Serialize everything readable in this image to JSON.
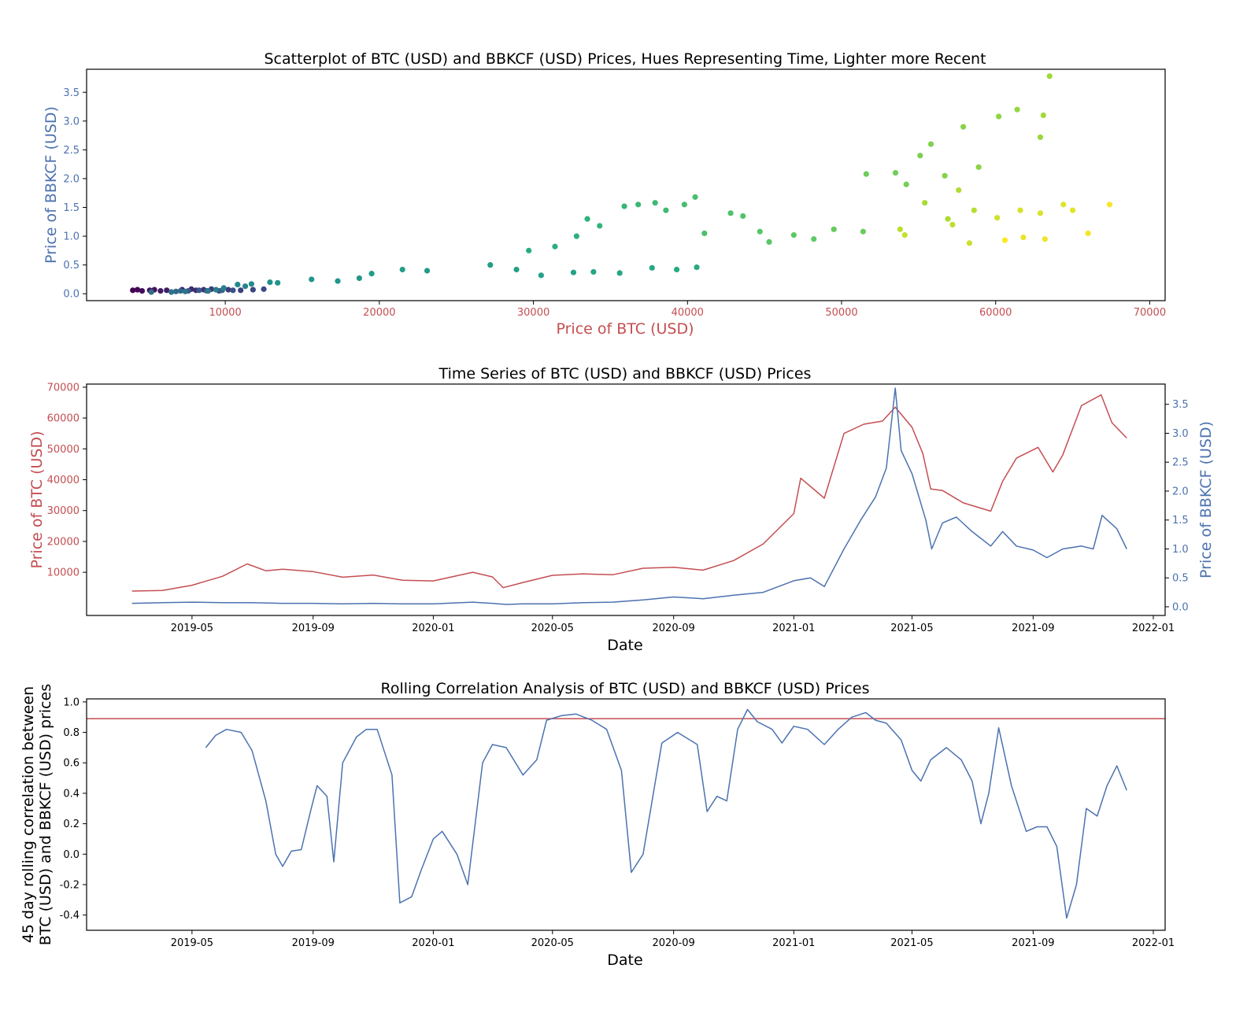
{
  "colors": {
    "btc": "#c44e52",
    "bbkcf": "#4c72b0",
    "threshold": "#c44e52",
    "axis": "#000000",
    "hue_scale": [
      "#440154",
      "#3b528b",
      "#21918c",
      "#27ad81",
      "#5ec962",
      "#a8db34",
      "#fde725"
    ]
  },
  "chart_data": [
    {
      "type": "scatter",
      "title": "Scatterplot of BTC (USD) and BBKCF (USD) Prices, Hues Representing Time, Lighter more Recent",
      "xlabel": "Price of BTC (USD)",
      "ylabel": "Price of BBKCF (USD)",
      "xlim": [
        1000,
        71000
      ],
      "ylim": [
        -0.12,
        3.9
      ],
      "xticks": [
        10000,
        20000,
        30000,
        40000,
        50000,
        60000,
        70000
      ],
      "yticks": [
        0.0,
        0.5,
        1.0,
        1.5,
        2.0,
        2.5,
        3.0,
        3.5
      ],
      "hue": "time (darker = older, lighter = more recent)",
      "points": [
        {
          "x": 4000,
          "y": 0.06,
          "t": 0.0
        },
        {
          "x": 4300,
          "y": 0.07,
          "t": 0.01
        },
        {
          "x": 4600,
          "y": 0.05,
          "t": 0.02
        },
        {
          "x": 5100,
          "y": 0.06,
          "t": 0.03
        },
        {
          "x": 5400,
          "y": 0.07,
          "t": 0.04
        },
        {
          "x": 5800,
          "y": 0.05,
          "t": 0.05
        },
        {
          "x": 6200,
          "y": 0.06,
          "t": 0.06
        },
        {
          "x": 7200,
          "y": 0.07,
          "t": 0.07
        },
        {
          "x": 7800,
          "y": 0.08,
          "t": 0.08
        },
        {
          "x": 8100,
          "y": 0.06,
          "t": 0.09
        },
        {
          "x": 8600,
          "y": 0.07,
          "t": 0.1
        },
        {
          "x": 9100,
          "y": 0.08,
          "t": 0.11
        },
        {
          "x": 10200,
          "y": 0.07,
          "t": 0.12
        },
        {
          "x": 11000,
          "y": 0.06,
          "t": 0.13
        },
        {
          "x": 11800,
          "y": 0.07,
          "t": 0.14
        },
        {
          "x": 12500,
          "y": 0.08,
          "t": 0.15
        },
        {
          "x": 10500,
          "y": 0.06,
          "t": 0.16
        },
        {
          "x": 9600,
          "y": 0.05,
          "t": 0.17
        },
        {
          "x": 8300,
          "y": 0.06,
          "t": 0.18
        },
        {
          "x": 7600,
          "y": 0.05,
          "t": 0.19
        },
        {
          "x": 8800,
          "y": 0.05,
          "t": 0.2
        },
        {
          "x": 9800,
          "y": 0.06,
          "t": 0.21
        },
        {
          "x": 7100,
          "y": 0.05,
          "t": 0.22
        },
        {
          "x": 6800,
          "y": 0.04,
          "t": 0.23
        },
        {
          "x": 5200,
          "y": 0.03,
          "t": 0.24
        },
        {
          "x": 6500,
          "y": 0.03,
          "t": 0.25
        },
        {
          "x": 7400,
          "y": 0.04,
          "t": 0.26
        },
        {
          "x": 8900,
          "y": 0.05,
          "t": 0.27
        },
        {
          "x": 9400,
          "y": 0.07,
          "t": 0.28
        },
        {
          "x": 9900,
          "y": 0.1,
          "t": 0.29
        },
        {
          "x": 11300,
          "y": 0.13,
          "t": 0.3
        },
        {
          "x": 10800,
          "y": 0.16,
          "t": 0.31
        },
        {
          "x": 11700,
          "y": 0.17,
          "t": 0.32
        },
        {
          "x": 12900,
          "y": 0.2,
          "t": 0.33
        },
        {
          "x": 13400,
          "y": 0.19,
          "t": 0.34
        },
        {
          "x": 15600,
          "y": 0.25,
          "t": 0.35
        },
        {
          "x": 17300,
          "y": 0.22,
          "t": 0.36
        },
        {
          "x": 18700,
          "y": 0.27,
          "t": 0.37
        },
        {
          "x": 19500,
          "y": 0.35,
          "t": 0.38
        },
        {
          "x": 23100,
          "y": 0.4,
          "t": 0.39
        },
        {
          "x": 21500,
          "y": 0.42,
          "t": 0.4
        },
        {
          "x": 27200,
          "y": 0.5,
          "t": 0.41
        },
        {
          "x": 28900,
          "y": 0.42,
          "t": 0.42
        },
        {
          "x": 30500,
          "y": 0.32,
          "t": 0.43
        },
        {
          "x": 32600,
          "y": 0.37,
          "t": 0.44
        },
        {
          "x": 33900,
          "y": 0.38,
          "t": 0.45
        },
        {
          "x": 35600,
          "y": 0.36,
          "t": 0.46
        },
        {
          "x": 37700,
          "y": 0.45,
          "t": 0.47
        },
        {
          "x": 39300,
          "y": 0.42,
          "t": 0.48
        },
        {
          "x": 40600,
          "y": 0.46,
          "t": 0.49
        },
        {
          "x": 29700,
          "y": 0.75,
          "t": 0.5
        },
        {
          "x": 31400,
          "y": 0.82,
          "t": 0.51
        },
        {
          "x": 32800,
          "y": 1.0,
          "t": 0.52
        },
        {
          "x": 33500,
          "y": 1.3,
          "t": 0.53
        },
        {
          "x": 34300,
          "y": 1.18,
          "t": 0.54
        },
        {
          "x": 35900,
          "y": 1.52,
          "t": 0.55
        },
        {
          "x": 36800,
          "y": 1.55,
          "t": 0.56
        },
        {
          "x": 37900,
          "y": 1.58,
          "t": 0.57
        },
        {
          "x": 38600,
          "y": 1.45,
          "t": 0.58
        },
        {
          "x": 39800,
          "y": 1.55,
          "t": 0.59
        },
        {
          "x": 40500,
          "y": 1.68,
          "t": 0.6
        },
        {
          "x": 41100,
          "y": 1.05,
          "t": 0.61
        },
        {
          "x": 42800,
          "y": 1.4,
          "t": 0.62
        },
        {
          "x": 43600,
          "y": 1.35,
          "t": 0.63
        },
        {
          "x": 44700,
          "y": 1.08,
          "t": 0.64
        },
        {
          "x": 45300,
          "y": 0.9,
          "t": 0.65
        },
        {
          "x": 46900,
          "y": 1.02,
          "t": 0.66
        },
        {
          "x": 48200,
          "y": 0.95,
          "t": 0.67
        },
        {
          "x": 49500,
          "y": 1.12,
          "t": 0.68
        },
        {
          "x": 51400,
          "y": 1.08,
          "t": 0.69
        },
        {
          "x": 51600,
          "y": 2.08,
          "t": 0.7
        },
        {
          "x": 53500,
          "y": 2.1,
          "t": 0.71
        },
        {
          "x": 54200,
          "y": 1.9,
          "t": 0.72
        },
        {
          "x": 55100,
          "y": 2.4,
          "t": 0.73
        },
        {
          "x": 55800,
          "y": 2.6,
          "t": 0.74
        },
        {
          "x": 56700,
          "y": 2.05,
          "t": 0.75
        },
        {
          "x": 57900,
          "y": 2.9,
          "t": 0.76
        },
        {
          "x": 58900,
          "y": 2.2,
          "t": 0.77
        },
        {
          "x": 60200,
          "y": 3.08,
          "t": 0.78
        },
        {
          "x": 61400,
          "y": 3.2,
          "t": 0.79
        },
        {
          "x": 62900,
          "y": 2.72,
          "t": 0.8
        },
        {
          "x": 63500,
          "y": 3.78,
          "t": 0.81
        },
        {
          "x": 63100,
          "y": 3.1,
          "t": 0.82
        },
        {
          "x": 55400,
          "y": 1.58,
          "t": 0.83
        },
        {
          "x": 56900,
          "y": 1.3,
          "t": 0.84
        },
        {
          "x": 57600,
          "y": 1.8,
          "t": 0.85
        },
        {
          "x": 58600,
          "y": 1.45,
          "t": 0.86
        },
        {
          "x": 53800,
          "y": 1.12,
          "t": 0.87
        },
        {
          "x": 57200,
          "y": 1.2,
          "t": 0.88
        },
        {
          "x": 54100,
          "y": 1.02,
          "t": 0.89
        },
        {
          "x": 58300,
          "y": 0.88,
          "t": 0.9
        },
        {
          "x": 60100,
          "y": 1.32,
          "t": 0.91
        },
        {
          "x": 61600,
          "y": 1.45,
          "t": 0.92
        },
        {
          "x": 62900,
          "y": 1.4,
          "t": 0.93
        },
        {
          "x": 64400,
          "y": 1.55,
          "t": 0.94
        },
        {
          "x": 65000,
          "y": 1.45,
          "t": 0.95
        },
        {
          "x": 61800,
          "y": 0.98,
          "t": 0.96
        },
        {
          "x": 63200,
          "y": 0.95,
          "t": 0.97
        },
        {
          "x": 66000,
          "y": 1.05,
          "t": 0.98
        },
        {
          "x": 67400,
          "y": 1.55,
          "t": 0.99
        },
        {
          "x": 60600,
          "y": 0.93,
          "t": 1.0
        }
      ]
    },
    {
      "type": "line",
      "title": "Time Series of BTC (USD) and BBKCF (USD) Prices",
      "xlabel": "Date",
      "ylabel_left": "Price of BTC (USD)",
      "ylabel_right": "Price of BBKCF (USD)",
      "xlim": [
        "2019-01-14",
        "2022-01-13"
      ],
      "ylim_left": [
        -4000,
        71000
      ],
      "ylim_right": [
        -0.15,
        3.85
      ],
      "xtick_labels": [
        "2019-05",
        "2019-09",
        "2020-01",
        "2020-05",
        "2020-09",
        "2021-01",
        "2021-05",
        "2021-09",
        "2022-01"
      ],
      "xtick_dates": [
        "2019-05-01",
        "2019-09-01",
        "2020-01-01",
        "2020-05-01",
        "2020-09-01",
        "2021-01-01",
        "2021-05-01",
        "2021-09-01",
        "2022-01-01"
      ],
      "yticks_left": [
        10000,
        20000,
        30000,
        40000,
        50000,
        60000,
        70000
      ],
      "yticks_right": [
        0.0,
        0.5,
        1.0,
        1.5,
        2.0,
        2.5,
        3.0,
        3.5
      ],
      "series": [
        {
          "name": "Price of BTC (USD)",
          "axis": "left",
          "x": [
            "2019-03-01",
            "2019-04-01",
            "2019-05-01",
            "2019-06-01",
            "2019-06-26",
            "2019-07-15",
            "2019-08-01",
            "2019-09-01",
            "2019-10-01",
            "2019-11-01",
            "2019-12-01",
            "2020-01-01",
            "2020-02-10",
            "2020-03-01",
            "2020-03-12",
            "2020-04-01",
            "2020-05-01",
            "2020-06-01",
            "2020-07-01",
            "2020-08-01",
            "2020-09-01",
            "2020-10-01",
            "2020-11-01",
            "2020-12-01",
            "2021-01-01",
            "2021-01-08",
            "2021-02-01",
            "2021-02-21",
            "2021-03-13",
            "2021-04-01",
            "2021-04-14",
            "2021-05-01",
            "2021-05-12",
            "2021-05-20",
            "2021-06-01",
            "2021-06-22",
            "2021-07-20",
            "2021-08-01",
            "2021-08-15",
            "2021-09-06",
            "2021-09-21",
            "2021-10-01",
            "2021-10-20",
            "2021-11-09",
            "2021-11-20",
            "2021-12-05"
          ],
          "y": [
            3900,
            4100,
            5800,
            8700,
            12700,
            10500,
            11000,
            10200,
            8400,
            9100,
            7400,
            7200,
            10000,
            8500,
            5000,
            6700,
            9000,
            9500,
            9200,
            11300,
            11600,
            10700,
            13800,
            19200,
            29000,
            40500,
            34000,
            55000,
            58000,
            59000,
            63500,
            57000,
            48500,
            37000,
            36500,
            32500,
            29800,
            39500,
            47000,
            50500,
            42500,
            48000,
            64000,
            67500,
            58500,
            53500
          ]
        },
        {
          "name": "Price of BBKCF (USD)",
          "axis": "right",
          "x": [
            "2019-03-01",
            "2019-04-01",
            "2019-05-01",
            "2019-06-01",
            "2019-07-01",
            "2019-08-01",
            "2019-09-01",
            "2019-10-01",
            "2019-11-01",
            "2019-12-01",
            "2020-01-01",
            "2020-02-10",
            "2020-03-01",
            "2020-03-15",
            "2020-04-01",
            "2020-05-01",
            "2020-06-01",
            "2020-07-01",
            "2020-08-01",
            "2020-09-01",
            "2020-10-01",
            "2020-11-01",
            "2020-12-01",
            "2021-01-01",
            "2021-01-18",
            "2021-02-01",
            "2021-02-21",
            "2021-03-10",
            "2021-03-25",
            "2021-04-05",
            "2021-04-14",
            "2021-04-20",
            "2021-05-01",
            "2021-05-15",
            "2021-05-21",
            "2021-06-01",
            "2021-06-15",
            "2021-07-01",
            "2021-07-20",
            "2021-08-01",
            "2021-08-15",
            "2021-09-01",
            "2021-09-15",
            "2021-10-01",
            "2021-10-20",
            "2021-11-01",
            "2021-11-10",
            "2021-11-25",
            "2021-12-05"
          ],
          "y": [
            0.06,
            0.07,
            0.08,
            0.07,
            0.07,
            0.06,
            0.06,
            0.05,
            0.06,
            0.05,
            0.05,
            0.08,
            0.06,
            0.04,
            0.05,
            0.05,
            0.07,
            0.08,
            0.12,
            0.17,
            0.14,
            0.2,
            0.25,
            0.45,
            0.5,
            0.35,
            1.0,
            1.5,
            1.9,
            2.4,
            3.78,
            2.7,
            2.3,
            1.5,
            1.0,
            1.45,
            1.55,
            1.3,
            1.05,
            1.3,
            1.05,
            0.98,
            0.85,
            1.0,
            1.05,
            1.0,
            1.58,
            1.35,
            1.0
          ]
        }
      ]
    },
    {
      "type": "line",
      "title": "Rolling Correlation Analysis of BTC (USD) and BBKCF (USD) Prices",
      "xlabel": "Date",
      "ylabel": "45 day rolling correlation between BTC (USD) and BBKCF (USD) prices",
      "ylabel_lines": [
        "45 day rolling correlation between",
        "BTC (USD) and BBKCF (USD) prices"
      ],
      "xlim": [
        "2019-01-14",
        "2022-01-13"
      ],
      "ylim": [
        -0.5,
        1.02
      ],
      "yticks": [
        -0.4,
        -0.2,
        0.0,
        0.2,
        0.4,
        0.6,
        0.8,
        1.0
      ],
      "xtick_labels": [
        "2019-05",
        "2019-09",
        "2020-01",
        "2020-05",
        "2020-09",
        "2021-01",
        "2021-05",
        "2021-09",
        "2022-01"
      ],
      "xtick_dates": [
        "2019-05-01",
        "2019-09-01",
        "2020-01-01",
        "2020-05-01",
        "2020-09-01",
        "2021-01-01",
        "2021-05-01",
        "2021-09-01",
        "2022-01-01"
      ],
      "threshold": 0.89,
      "series": [
        {
          "name": "45 day rolling correlation",
          "x": [
            "2019-05-15",
            "2019-05-25",
            "2019-06-05",
            "2019-06-20",
            "2019-07-01",
            "2019-07-15",
            "2019-07-25",
            "2019-08-01",
            "2019-08-10",
            "2019-08-20",
            "2019-08-30",
            "2019-09-05",
            "2019-09-15",
            "2019-09-22",
            "2019-10-01",
            "2019-10-15",
            "2019-10-25",
            "2019-11-05",
            "2019-11-20",
            "2019-11-28",
            "2019-12-10",
            "2019-12-20",
            "2020-01-01",
            "2020-01-10",
            "2020-01-25",
            "2020-02-05",
            "2020-02-20",
            "2020-03-01",
            "2020-03-15",
            "2020-04-01",
            "2020-04-15",
            "2020-04-25",
            "2020-05-10",
            "2020-05-25",
            "2020-06-10",
            "2020-06-25",
            "2020-07-10",
            "2020-07-20",
            "2020-08-01",
            "2020-08-20",
            "2020-09-05",
            "2020-09-25",
            "2020-10-05",
            "2020-10-15",
            "2020-10-25",
            "2020-11-05",
            "2020-11-15",
            "2020-11-25",
            "2020-12-10",
            "2020-12-20",
            "2021-01-01",
            "2021-01-15",
            "2021-02-01",
            "2021-02-15",
            "2021-03-01",
            "2021-03-15",
            "2021-03-25",
            "2021-04-05",
            "2021-04-20",
            "2021-05-01",
            "2021-05-10",
            "2021-05-20",
            "2021-06-05",
            "2021-06-20",
            "2021-07-01",
            "2021-07-10",
            "2021-07-18",
            "2021-07-28",
            "2021-08-10",
            "2021-08-25",
            "2021-09-05",
            "2021-09-15",
            "2021-09-25",
            "2021-10-05",
            "2021-10-15",
            "2021-10-25",
            "2021-11-05",
            "2021-11-15",
            "2021-11-25",
            "2021-12-05"
          ],
          "y": [
            0.7,
            0.78,
            0.82,
            0.8,
            0.68,
            0.35,
            0.0,
            -0.08,
            0.02,
            0.03,
            0.3,
            0.45,
            0.38,
            -0.05,
            0.6,
            0.77,
            0.82,
            0.82,
            0.52,
            -0.32,
            -0.28,
            -0.1,
            0.1,
            0.15,
            0.0,
            -0.2,
            0.6,
            0.72,
            0.7,
            0.52,
            0.62,
            0.88,
            0.91,
            0.92,
            0.88,
            0.82,
            0.55,
            -0.12,
            0.0,
            0.73,
            0.8,
            0.72,
            0.28,
            0.38,
            0.35,
            0.82,
            0.95,
            0.87,
            0.82,
            0.73,
            0.84,
            0.82,
            0.72,
            0.82,
            0.9,
            0.93,
            0.88,
            0.86,
            0.75,
            0.55,
            0.48,
            0.62,
            0.7,
            0.62,
            0.48,
            0.2,
            0.4,
            0.83,
            0.45,
            0.15,
            0.18,
            0.18,
            0.05,
            -0.42,
            -0.2,
            0.3,
            0.25,
            0.45,
            0.58,
            0.42
          ]
        }
      ]
    }
  ]
}
